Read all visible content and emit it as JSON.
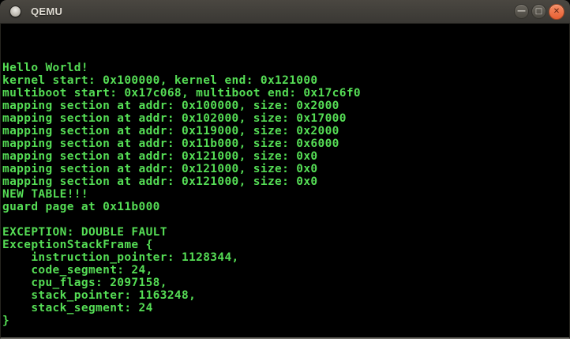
{
  "window": {
    "title": "QEMU",
    "controls": {
      "minimize_glyph": "—",
      "maximize_glyph": "□",
      "close_glyph": "✕"
    }
  },
  "terminal": {
    "text_color": "#55dd55",
    "background_color": "#000000",
    "lines": [
      "",
      "",
      "",
      "Hello World!",
      "kernel start: 0x100000, kernel end: 0x121000",
      "multiboot start: 0x17c068, multiboot end: 0x17c6f0",
      "mapping section at addr: 0x100000, size: 0x2000",
      "mapping section at addr: 0x102000, size: 0x17000",
      "mapping section at addr: 0x119000, size: 0x2000",
      "mapping section at addr: 0x11b000, size: 0x6000",
      "mapping section at addr: 0x121000, size: 0x0",
      "mapping section at addr: 0x121000, size: 0x0",
      "mapping section at addr: 0x121000, size: 0x0",
      "NEW TABLE!!!",
      "guard page at 0x11b000",
      "",
      "EXCEPTION: DOUBLE FAULT",
      "ExceptionStackFrame {",
      "    instruction_pointer: 1128344,",
      "    code_segment: 24,",
      "    cpu_flags: 2097158,",
      "    stack_pointer: 1163248,",
      "    stack_segment: 24",
      "}",
      ""
    ]
  }
}
